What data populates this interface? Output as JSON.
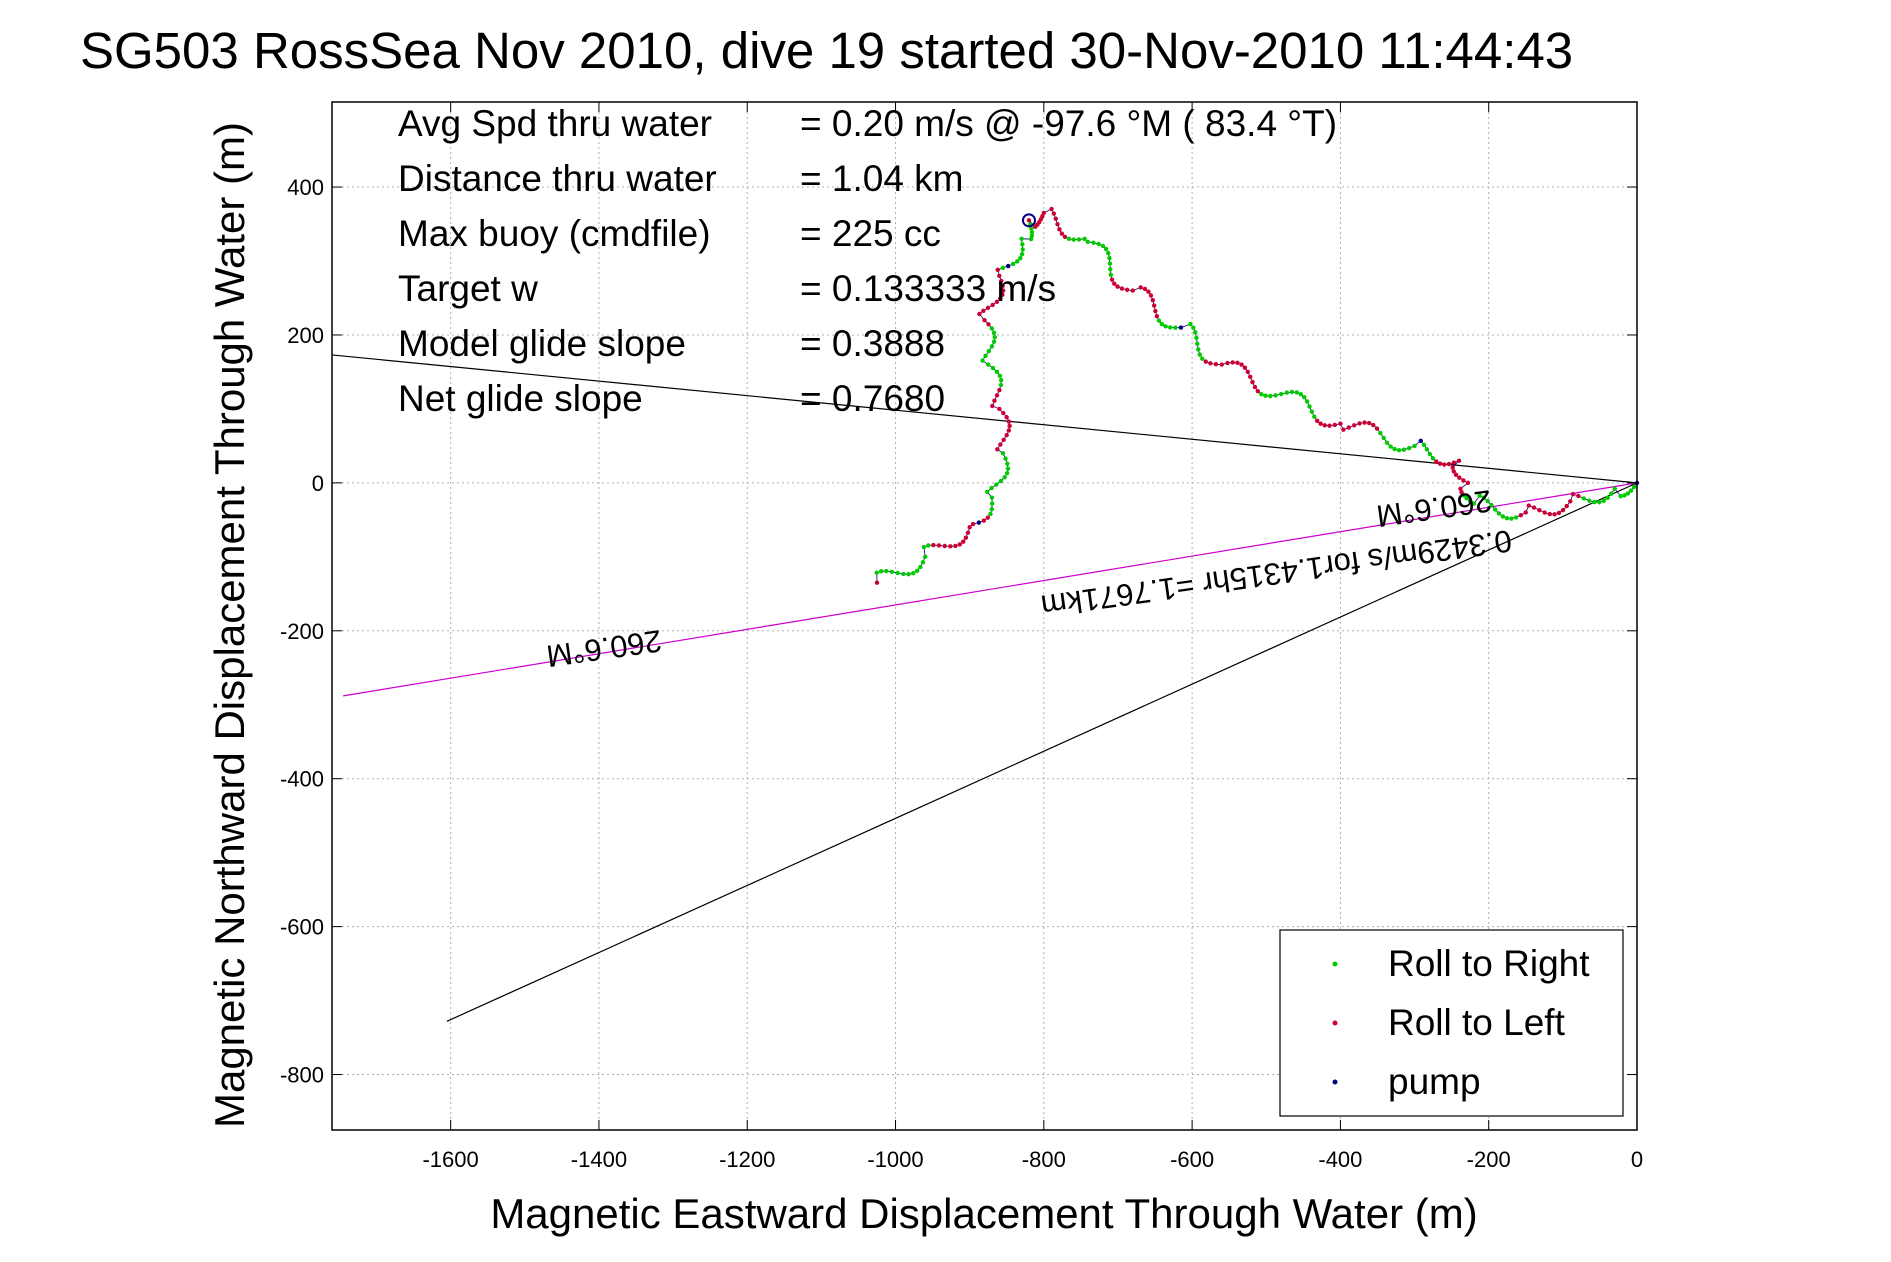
{
  "chart_data": {
    "type": "scatter",
    "title": "SG503 RossSea Nov 2010, dive 19 started 30-Nov-2010 11:44:43",
    "xlabel": "Magnetic Eastward Displacement Through Water (m)",
    "ylabel": "Magnetic Northward Displacement Through Water (m)",
    "xlim": [
      -1760,
      0
    ],
    "ylim": [
      -875,
      515
    ],
    "xticks": [
      -1600,
      -1400,
      -1200,
      -1000,
      -800,
      -600,
      -400,
      -200,
      0
    ],
    "yticks": [
      400,
      200,
      0,
      -200,
      -400,
      -600,
      -800
    ],
    "grid": true,
    "legend_position": "bottom-right",
    "info_lines": [
      {
        "label": "Avg Spd thru water",
        "value": "=  0.20 m/s @  -97.6 °M ( 83.4 °T)"
      },
      {
        "label": "Distance thru water",
        "value": "=  1.04 km"
      },
      {
        "label": "Max buoy (cmdfile)",
        "value": "= 225 cc"
      },
      {
        "label": "Target w",
        "value": "= 0.133333 m/s"
      },
      {
        "label": "Model glide slope",
        "value": "= 0.3888"
      },
      {
        "label": "Net glide slope",
        "value": "= 0.7680"
      }
    ],
    "series": [
      {
        "name": "Roll to Right",
        "color": "#00cc00",
        "marker": "dot"
      },
      {
        "name": "Roll to Left",
        "color": "#cc0033",
        "marker": "dot"
      },
      {
        "name": "pump",
        "color": "#000080",
        "marker": "dot"
      }
    ],
    "track_anchors": [
      [
        0,
        0
      ],
      [
        -30,
        -8
      ],
      [
        -90,
        -25
      ],
      [
        -150,
        -40
      ],
      [
        -220,
        -28
      ],
      [
        -228,
        0
      ],
      [
        -240,
        30
      ],
      [
        -300,
        50
      ],
      [
        -400,
        80
      ],
      [
        -480,
        120
      ],
      [
        -560,
        160
      ],
      [
        -615,
        210
      ],
      [
        -680,
        260
      ],
      [
        -745,
        330
      ],
      [
        -800,
        365
      ],
      [
        -820,
        355
      ],
      [
        -830,
        330
      ],
      [
        -860,
        280
      ],
      [
        -880,
        220
      ],
      [
        -875,
        160
      ],
      [
        -860,
        100
      ],
      [
        -855,
        40
      ],
      [
        -870,
        -20
      ],
      [
        -900,
        -60
      ],
      [
        -960,
        -100
      ],
      [
        -1025,
        -135
      ]
    ],
    "reference_lines": [
      {
        "name": "heading-line",
        "color": "#000000",
        "points": [
          [
            -1760,
            173
          ],
          [
            0,
            0
          ]
        ]
      },
      {
        "name": "current-line",
        "color": "#000000",
        "points": [
          [
            -1605,
            -728
          ],
          [
            0,
            0
          ]
        ]
      },
      {
        "name": "current-vector-line",
        "color": "#cc00cc",
        "points": [
          [
            -1745,
            -288
          ],
          [
            0,
            0
          ]
        ]
      }
    ],
    "path_labels": [
      {
        "text": "260.6°M",
        "x": -200,
        "y": 0
      },
      {
        "text": "0.3429m/s for1.4315hr =1.7671km",
        "x": -600,
        "y": -100
      },
      {
        "text": "260.6°M",
        "x": -1400,
        "y": -195
      }
    ]
  }
}
